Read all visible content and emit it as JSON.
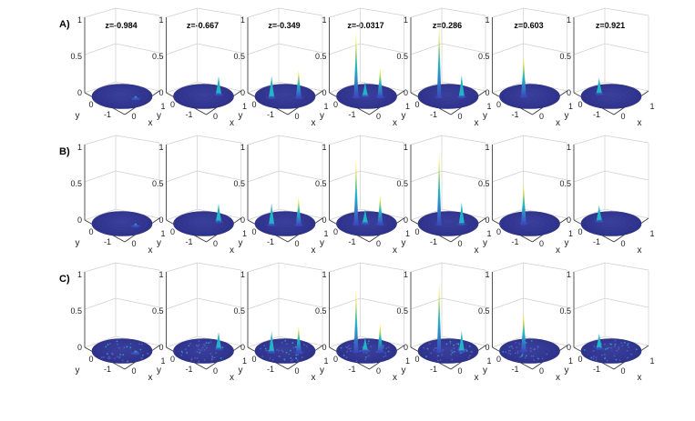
{
  "chart_data": {
    "type": "surface-3d-grid",
    "row_labels": [
      "A)",
      "B)",
      "C)"
    ],
    "column_titles": [
      "z=-0.984",
      "z=-0.667",
      "z=-0.349",
      "z=-0.0317",
      "z=0.286",
      "z=0.603",
      "z=0.921"
    ],
    "zlim": [
      0,
      1
    ],
    "z_ticks": [
      "0",
      "0.5",
      "1"
    ],
    "x_ticks": [
      "0",
      "1"
    ],
    "y_ticks": [
      "-1",
      "0"
    ],
    "xlabel": "x",
    "ylabel": "y",
    "peaks_by_column": [
      [
        {
          "x": 0.45,
          "y": 0.2,
          "h": 0.04
        }
      ],
      [
        {
          "x": 0.5,
          "y": -0.15,
          "h": 0.25
        }
      ],
      [
        {
          "x": -0.45,
          "y": 0.1,
          "h": 0.3
        },
        {
          "x": 0.45,
          "y": 0.1,
          "h": 0.38
        }
      ],
      [
        {
          "x": -0.35,
          "y": 0.05,
          "h": 0.9
        },
        {
          "x": 0.45,
          "y": 0.05,
          "h": 0.4
        },
        {
          "x": -0.05,
          "y": 0.0,
          "h": 0.2
        }
      ],
      [
        {
          "x": -0.3,
          "y": 0.05,
          "h": 1.0
        },
        {
          "x": 0.45,
          "y": 0.05,
          "h": 0.3
        }
      ],
      [
        {
          "x": -0.2,
          "y": 0.0,
          "h": 0.55
        }
      ],
      [
        {
          "x": -0.4,
          "y": -0.2,
          "h": 0.22
        }
      ]
    ],
    "colors": {
      "base": "#2c2f88",
      "low": "#3b4cc0",
      "mid": "#22b5c8",
      "high": "#f5e11e",
      "peak": "#fde725"
    }
  }
}
